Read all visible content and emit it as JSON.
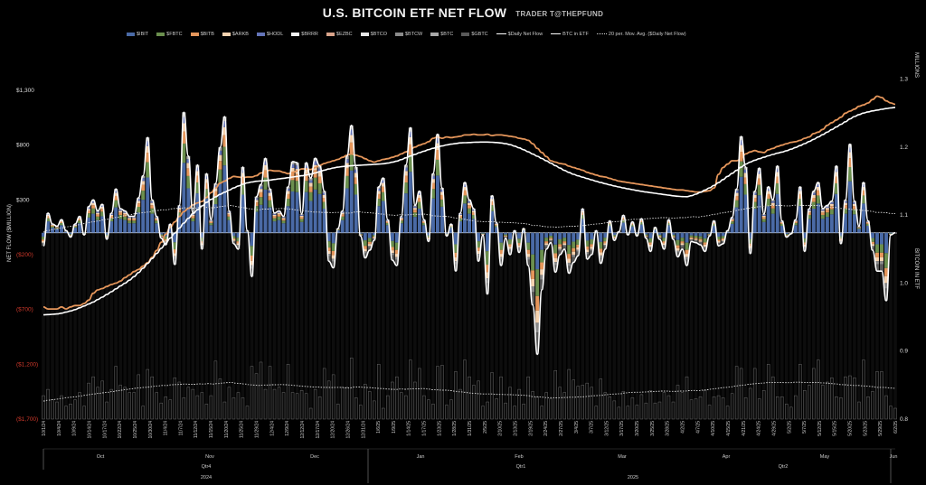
{
  "header": {
    "title": "U.S. BITCOIN ETF NET FLOW",
    "subtitle": "TRADER T@THEPFUND"
  },
  "legend": [
    {
      "label": "$IBIT",
      "color": "#4a6aa6",
      "kind": "bar"
    },
    {
      "label": "$FBTC",
      "color": "#6b8f4e",
      "kind": "bar"
    },
    {
      "label": "$BITB",
      "color": "#e5965b",
      "kind": "bar"
    },
    {
      "label": "$ARKB",
      "color": "#f5d3b0",
      "kind": "bar"
    },
    {
      "label": "$HODL",
      "color": "#6474b8",
      "kind": "bar"
    },
    {
      "label": "$BRRR",
      "color": "#f2f2f2",
      "kind": "bar"
    },
    {
      "label": "$EZBC",
      "color": "#d9a38a",
      "kind": "bar"
    },
    {
      "label": "$BTCO",
      "color": "#e8e8e8",
      "kind": "bar"
    },
    {
      "label": "$BTCW",
      "color": "#8a8a8a",
      "kind": "bar"
    },
    {
      "label": "$BTC",
      "color": "#a8a8a8",
      "kind": "bar"
    },
    {
      "label": "$GBTC",
      "color": "#5a5a5a",
      "kind": "bar"
    },
    {
      "label": "$Daily Net Flow",
      "color": "#ffffff",
      "kind": "line"
    },
    {
      "label": "BTC in ETF",
      "color": "#ffffff",
      "kind": "line"
    },
    {
      "label": "20 per. Mov. Avg. ($Daily Net Flow)",
      "color": "#dddddd",
      "kind": "dotted"
    }
  ],
  "chart_data": {
    "type": "bar",
    "title": "U.S. BITCOIN ETF NET FLOW",
    "ylabel_left": "NET FLOW ($MILLION)",
    "ylabel_right": "BITCOIN IN ETF",
    "ylabel_right_unit": "MILLIONS",
    "y_left_ticks": [
      "$1,300",
      "$800",
      "$300",
      "($200)",
      "($700)",
      "($1,200)",
      "($1,700)"
    ],
    "y_left_tick_values": [
      1300,
      800,
      300,
      -200,
      -700,
      -1200,
      -1700
    ],
    "y_left_negative_color": "#d0392b",
    "y_right_ticks": [
      "1.3",
      "1.2",
      "1.1",
      "1.0",
      "0.9",
      "0.8"
    ],
    "y_right_tick_values": [
      1.3,
      1.2,
      1.1,
      1.0,
      0.9,
      0.8
    ],
    "ylim_left": [
      -1700,
      1300
    ],
    "ylim_right": [
      0.8,
      1.35
    ],
    "date_labels": [
      "10/1/24",
      "10/4/24",
      "10/9/24",
      "10/14/24",
      "10/17/24",
      "10/22/24",
      "10/25/24",
      "10/30/24",
      "11/4/24",
      "11/7/24",
      "11/12/24",
      "11/15/24",
      "11/20/24",
      "11/25/24",
      "11/29/24",
      "12/4/24",
      "12/9/24",
      "12/12/24",
      "12/17/24",
      "12/20/24",
      "12/26/24",
      "12/31/24",
      "1/6/25",
      "1/9/25",
      "1/14/25",
      "1/17/25",
      "1/23/25",
      "1/28/25",
      "1/31/25",
      "2/5/25",
      "2/10/25",
      "2/13/25",
      "2/19/25",
      "2/24/25",
      "2/27/25",
      "3/4/25",
      "3/7/25",
      "3/12/25",
      "3/17/25",
      "3/20/25",
      "3/25/25",
      "3/28/25",
      "4/2/25",
      "4/7/25",
      "4/10/25",
      "4/15/25",
      "4/21/25",
      "4/24/25",
      "4/29/25",
      "5/2/25",
      "5/7/25",
      "5/12/25",
      "5/15/25",
      "5/20/25",
      "5/23/25",
      "5/29/25",
      "6/2/25"
    ],
    "month_labels": [
      "Oct",
      "Nov",
      "Dec",
      "Jan",
      "Feb",
      "Mar",
      "Apr",
      "May",
      "Jun"
    ],
    "quarter_labels": [
      "Qtr4",
      "Qtr1",
      "Qtr2"
    ],
    "year_labels": [
      "2024",
      "2025"
    ],
    "daily_net_flow": [
      -120,
      180,
      80,
      60,
      120,
      20,
      -40,
      80,
      150,
      -20,
      240,
      300,
      200,
      260,
      -60,
      180,
      400,
      220,
      200,
      150,
      150,
      320,
      520,
      870,
      300,
      150,
      -50,
      -110,
      80,
      -290,
      250,
      1100,
      700,
      180,
      620,
      -150,
      540,
      120,
      450,
      780,
      1060,
      200,
      -100,
      -150,
      600,
      20,
      -400,
      330,
      440,
      680,
      400,
      180,
      200,
      150,
      420,
      650,
      640,
      170,
      640,
      500,
      680,
      610,
      380,
      -260,
      -320,
      40,
      200,
      700,
      980,
      600,
      -30,
      -230,
      -160,
      -70,
      420,
      500,
      120,
      -250,
      -300,
      150,
      620,
      960,
      250,
      380,
      120,
      -80,
      540,
      900,
      410,
      -30,
      80,
      -350,
      180,
      460,
      300,
      220,
      -260,
      -20,
      -560,
      340,
      90,
      -300,
      -50,
      -200,
      20,
      -180,
      40,
      -300,
      -660,
      -1110,
      -520,
      -150,
      -90,
      -360,
      -200,
      -150,
      -370,
      -270,
      -210,
      220,
      -240,
      -200,
      20,
      -280,
      -150,
      110,
      -70,
      10,
      160,
      -20,
      100,
      -30,
      130,
      -50,
      -170,
      50,
      -60,
      -150,
      120,
      -60,
      -220,
      -150,
      -300,
      -80,
      -90,
      -110,
      -170,
      -30,
      110,
      -120,
      -100,
      20,
      140,
      400,
      880,
      600,
      -190,
      380,
      590,
      170,
      420,
      300,
      610,
      110,
      -40,
      -10,
      120,
      420,
      -170,
      220,
      380,
      460,
      220,
      250,
      290,
      610,
      -100,
      300,
      810,
      290,
      60,
      460,
      110,
      -160,
      -350,
      -350,
      -620,
      -20,
      0
    ],
    "btc_in_etf": [
      0.965,
      0.962,
      0.962,
      0.962,
      0.965,
      0.962,
      0.965,
      0.967,
      0.967,
      0.97,
      0.975,
      0.985,
      0.99,
      0.992,
      0.995,
      0.998,
      1.0,
      1.003,
      1.008,
      1.012,
      1.017,
      1.02,
      1.025,
      1.03,
      1.038,
      1.048,
      1.06,
      1.072,
      1.082,
      1.09,
      1.098,
      1.105,
      1.11,
      1.115,
      1.118,
      1.12,
      1.126,
      1.133,
      1.14,
      1.147,
      1.15,
      1.154,
      1.157,
      1.156,
      1.155,
      1.156,
      1.156,
      1.158,
      1.162,
      1.164,
      1.166,
      1.165,
      1.165,
      1.163,
      1.161,
      1.163,
      1.165,
      1.168,
      1.168,
      1.167,
      1.17,
      1.173,
      1.176,
      1.178,
      1.18,
      1.182,
      1.185,
      1.188,
      1.19,
      1.188,
      1.186,
      1.183,
      1.18,
      1.178,
      1.18,
      1.182,
      1.183,
      1.185,
      1.187,
      1.19,
      1.193,
      1.197,
      1.2,
      1.203,
      1.205,
      1.208,
      1.213,
      1.215,
      1.213,
      1.215,
      1.214,
      1.215,
      1.216,
      1.218,
      1.218,
      1.219,
      1.218,
      1.218,
      1.219,
      1.217,
      1.218,
      1.218,
      1.217,
      1.216,
      1.215,
      1.213,
      1.212,
      1.21,
      1.205,
      1.198,
      1.192,
      1.186,
      1.18,
      1.178,
      1.176,
      1.175,
      1.172,
      1.17,
      1.168,
      1.166,
      1.163,
      1.161,
      1.159,
      1.157,
      1.156,
      1.154,
      1.152,
      1.15,
      1.149,
      1.148,
      1.147,
      1.146,
      1.145,
      1.144,
      1.143,
      1.142,
      1.141,
      1.14,
      1.139,
      1.138,
      1.137,
      1.137,
      1.136,
      1.135,
      1.134,
      1.134,
      1.135,
      1.136,
      1.14,
      1.16,
      1.17,
      1.175,
      1.18,
      1.18,
      1.183,
      1.19,
      1.193,
      1.195,
      1.193,
      1.192,
      1.196,
      1.198,
      1.201,
      1.203,
      1.205,
      1.207,
      1.208,
      1.21,
      1.213,
      1.215,
      1.22,
      1.222,
      1.226,
      1.232,
      1.236,
      1.24,
      1.244,
      1.25,
      1.253,
      1.256,
      1.26,
      1.262,
      1.265,
      1.27,
      1.275,
      1.273,
      1.268,
      1.265,
      1.263
    ],
    "mov_avg_20": [
      0.4,
      0.7,
      1,
      1.2,
      1.5,
      1.8,
      2,
      2.2,
      2.5,
      2.8,
      3.1,
      3.4,
      3.6,
      3.9,
      4.1,
      4.4,
      4.7,
      5,
      5.3,
      5.5,
      5.8,
      6,
      6.2,
      6.3,
      6.6,
      6.8,
      7,
      7,
      7.3,
      7.4,
      7.5,
      7.6,
      7.5,
      7.5,
      7.7,
      7.6,
      7.8,
      7.6,
      7.8,
      8,
      8.2,
      8.3,
      8,
      7.8,
      7.6,
      7.3,
      7.2,
      7,
      7.2,
      7.2,
      7.3,
      7.3,
      7.4,
      7.3,
      7.2,
      7,
      6.8,
      6.6,
      6.5,
      6.3,
      6.3,
      6.2,
      6.2,
      6.1,
      6.2,
      6.2,
      6,
      6,
      6.3,
      6.4,
      6.2,
      6.1,
      6,
      5.8,
      5.7,
      5.5,
      5.4,
      5.3,
      5.5,
      5.4,
      5.5,
      5.6,
      5.6,
      5.7,
      5.5,
      5.2,
      5.1,
      5,
      5,
      4.8,
      4.5,
      4.3,
      4.1,
      3.8,
      3.7,
      3.5,
      3.4,
      3.4,
      3.4,
      3.2,
      3.2,
      3.1,
      3.1,
      3,
      2.9,
      2.8,
      2.6,
      2.2,
      2.2,
      2,
      1.8,
      1.8,
      1.7,
      1.8,
      1.9,
      2,
      2,
      2.1,
      2.2,
      2.4,
      2.6,
      2.7,
      2.8,
      3.1,
      3.3,
      3.4,
      3.5,
      3.8,
      4,
      4.1,
      4.1,
      4.2,
      4.3,
      4.4,
      4.5,
      4.6,
      4.6,
      4.5,
      4.5,
      4.6,
      4.6,
      4.8,
      4.9,
      4.8,
      5,
      5.2,
      5.5,
      5.7,
      6,
      6.2,
      6.4,
      6.7,
      7,
      7.2,
      7.5,
      7.7,
      7.9,
      8,
      8.2,
      8.3,
      8.3,
      8.3,
      8.2,
      8.2,
      8.4,
      8.4,
      8.3,
      8.3,
      8.3,
      8.3,
      8.1,
      8,
      7.8,
      7.7,
      7.4,
      7.3,
      7.2,
      7,
      7,
      6.8,
      6.7,
      6.5,
      6.2,
      6.2,
      6.1,
      5.9,
      5.8
    ]
  }
}
